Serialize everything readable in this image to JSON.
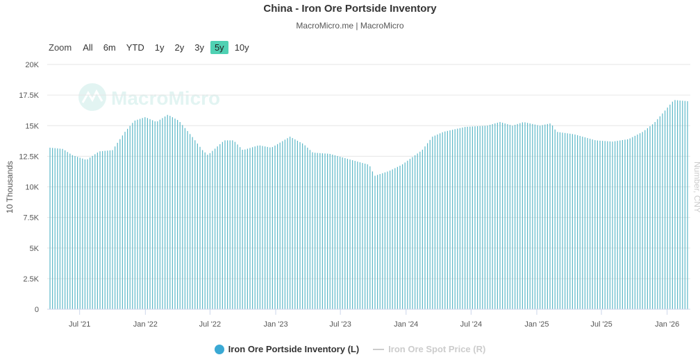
{
  "chart_data": {
    "type": "bar",
    "title": "China - Iron Ore Portside Inventory",
    "subtitle": "MacroMicro.me | MacroMicro",
    "watermark": "MacroMicro",
    "ylabel": "10 Thousands",
    "y2label": "Number, CNY",
    "ylim": [
      0,
      20000
    ],
    "yticks": [
      0,
      2500,
      5000,
      7500,
      10000,
      12500,
      15000,
      17500,
      20000
    ],
    "ytick_labels": [
      "0",
      "2.5K",
      "5K",
      "7.5K",
      "10K",
      "12.5K",
      "15K",
      "17.5K",
      "20K"
    ],
    "x_range": [
      "2021-04-09",
      "2026-02-27"
    ],
    "xtick_labels": [
      "Jul '21",
      "Jan '22",
      "Jul '22",
      "Jan '23",
      "Jul '23",
      "Jan '24",
      "Jul '24",
      "Jan '25",
      "Jul '25",
      "Jan '26"
    ],
    "xtick_dates": [
      "2021-07-01",
      "2022-01-01",
      "2022-07-01",
      "2023-01-01",
      "2023-07-01",
      "2024-01-01",
      "2024-07-01",
      "2025-01-01",
      "2025-07-01",
      "2026-01-01"
    ],
    "grid": true,
    "legend_position": "bottom-center",
    "anchors": [
      [
        "2021-04-09",
        13200
      ],
      [
        "2021-05-15",
        13100
      ],
      [
        "2021-06-10",
        12600
      ],
      [
        "2021-07-20",
        12200
      ],
      [
        "2021-08-25",
        12900
      ],
      [
        "2021-10-01",
        13000
      ],
      [
        "2021-11-05",
        14500
      ],
      [
        "2021-12-01",
        15400
      ],
      [
        "2022-01-01",
        15700
      ],
      [
        "2022-02-01",
        15300
      ],
      [
        "2022-03-05",
        15900
      ],
      [
        "2022-04-05",
        15400
      ],
      [
        "2022-05-15",
        14000
      ],
      [
        "2022-06-10",
        13000
      ],
      [
        "2022-06-25",
        12600
      ],
      [
        "2022-08-10",
        13800
      ],
      [
        "2022-09-05",
        13800
      ],
      [
        "2022-10-01",
        13000
      ],
      [
        "2022-11-15",
        13400
      ],
      [
        "2022-12-20",
        13200
      ],
      [
        "2023-02-10",
        14100
      ],
      [
        "2023-03-20",
        13500
      ],
      [
        "2023-04-15",
        12800
      ],
      [
        "2023-06-01",
        12700
      ],
      [
        "2023-08-01",
        12200
      ],
      [
        "2023-09-20",
        11800
      ],
      [
        "2023-10-05",
        10900
      ],
      [
        "2023-11-15",
        11300
      ],
      [
        "2023-12-20",
        11800
      ],
      [
        "2024-02-15",
        13000
      ],
      [
        "2024-03-15",
        14100
      ],
      [
        "2024-04-15",
        14500
      ],
      [
        "2024-06-15",
        14900
      ],
      [
        "2024-08-15",
        15000
      ],
      [
        "2024-09-20",
        15300
      ],
      [
        "2024-10-25",
        15000
      ],
      [
        "2024-11-25",
        15300
      ],
      [
        "2025-01-10",
        15000
      ],
      [
        "2025-02-10",
        15200
      ],
      [
        "2025-02-25",
        14500
      ],
      [
        "2025-04-15",
        14300
      ],
      [
        "2025-06-15",
        13800
      ],
      [
        "2025-08-01",
        13700
      ],
      [
        "2025-09-15",
        13900
      ],
      [
        "2025-10-25",
        14500
      ],
      [
        "2025-11-25",
        15200
      ],
      [
        "2025-12-25",
        16200
      ],
      [
        "2026-01-20",
        17100
      ],
      [
        "2026-02-27",
        17000
      ]
    ]
  },
  "zoom": {
    "label": "Zoom",
    "buttons": [
      "All",
      "6m",
      "YTD",
      "1y",
      "2y",
      "3y",
      "5y",
      "10y"
    ],
    "active": "5y"
  },
  "legend": {
    "items": [
      {
        "name": "Iron Ore Portside Inventory (L)",
        "color": "#3aa9d4",
        "enabled": true
      },
      {
        "name": "Iron Ore Spot Price (R)",
        "color": "#cccccc",
        "enabled": false
      }
    ]
  },
  "colors": {
    "bar": "#5bb8c8",
    "grid": "#e6e6e6",
    "axis_text": "#555555",
    "zoom_active": "#4fd1b3"
  }
}
